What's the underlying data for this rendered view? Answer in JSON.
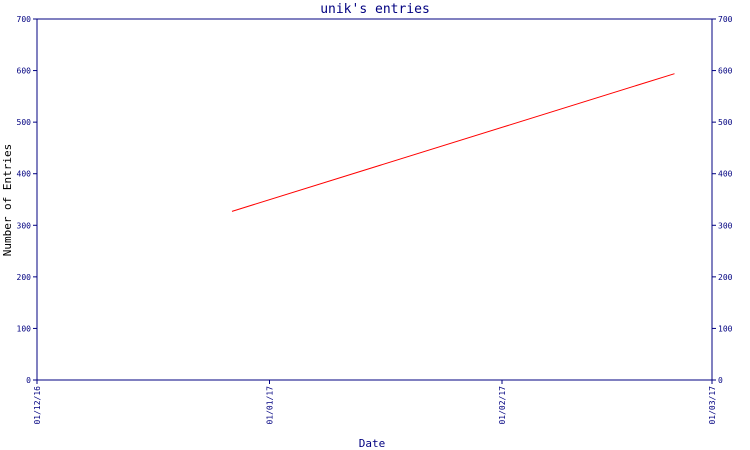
{
  "chart_data": {
    "type": "line",
    "title": "unik's entries",
    "xlabel": "Date",
    "ylabel": "Number of Entries",
    "ylim": [
      0,
      700
    ],
    "yticks": [
      0,
      100,
      200,
      300,
      400,
      500,
      600,
      700
    ],
    "x_ticks": [
      {
        "label": "01/12/16",
        "date": "2016-12-01"
      },
      {
        "label": "01/01/17",
        "date": "2017-01-01"
      },
      {
        "label": "01/02/17",
        "date": "2017-02-01"
      },
      {
        "label": "01/03/17",
        "date": "2017-03-01"
      }
    ],
    "xlim": [
      "2016-12-01",
      "2017-03-01"
    ],
    "grid": false,
    "series": [
      {
        "color": "#ff0000",
        "points": [
          {
            "x": "2016-12-27",
            "y": 327
          },
          {
            "x": "2017-02-24",
            "y": 594
          }
        ]
      }
    ],
    "colors": {
      "axis": "#000080",
      "line": "#ff0000",
      "background": "#ffffff"
    }
  }
}
